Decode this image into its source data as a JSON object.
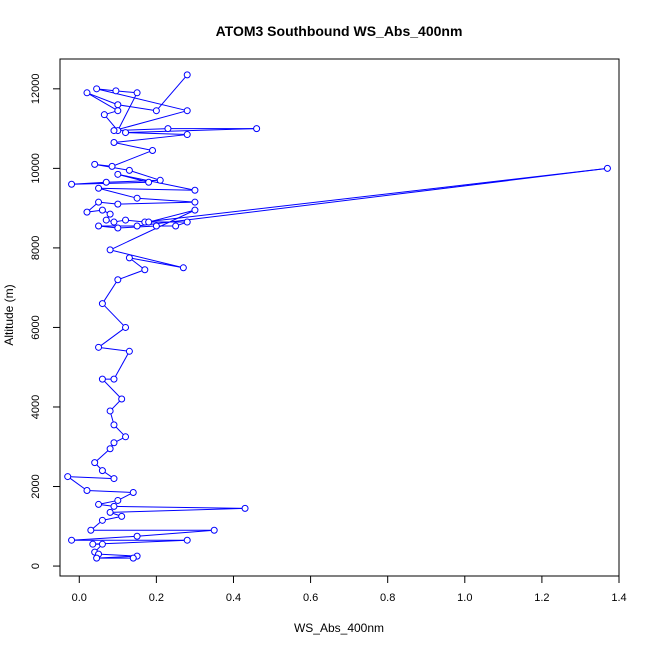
{
  "chart_data": {
    "type": "line",
    "title": "ATOM3 Southbound WS_Abs_400nm",
    "xlabel": "WS_Abs_400nm",
    "ylabel": "Altitude (m)",
    "xlim": [
      -0.05,
      1.4
    ],
    "ylim": [
      -250,
      12750
    ],
    "xticks": [
      "0.0",
      "0.2",
      "0.4",
      "0.6",
      "0.8",
      "1.0",
      "1.2",
      "1.4"
    ],
    "xtick_values": [
      0,
      0.2,
      0.4,
      0.6,
      0.8,
      1.0,
      1.2,
      1.4
    ],
    "yticks": [
      "0",
      "2000",
      "4000",
      "6000",
      "8000",
      "10000",
      "12000"
    ],
    "ytick_values": [
      0,
      2000,
      4000,
      6000,
      8000,
      10000,
      12000
    ],
    "grid": false,
    "series_color": "#0000ff",
    "series": [
      {
        "markers": "open-circle",
        "points": [
          [
            0.28,
            12350
          ],
          [
            0.2,
            11450
          ],
          [
            0.1,
            11600
          ],
          [
            0.02,
            11900
          ],
          [
            0.1,
            11450
          ],
          [
            0.065,
            11350
          ],
          [
            0.1,
            10950
          ],
          [
            0.15,
            11900
          ],
          [
            0.095,
            11950
          ],
          [
            0.045,
            12000
          ],
          [
            0.28,
            11450
          ],
          [
            0.09,
            10950
          ],
          [
            0.23,
            11000
          ],
          [
            0.46,
            11000
          ],
          [
            0.12,
            10900
          ],
          [
            0.28,
            10850
          ],
          [
            0.09,
            10650
          ],
          [
            0.19,
            10450
          ],
          [
            0.085,
            10050
          ],
          [
            0.04,
            10100
          ],
          [
            0.13,
            9950
          ],
          [
            0.21,
            9700
          ],
          [
            0.07,
            9650
          ],
          [
            -0.02,
            9600
          ],
          [
            0.18,
            9650
          ],
          [
            0.1,
            9850
          ],
          [
            0.3,
            9450
          ],
          [
            0.05,
            9500
          ],
          [
            0.15,
            9250
          ],
          [
            0.3,
            9150
          ],
          [
            0.1,
            9100
          ],
          [
            0.05,
            9150
          ],
          [
            0.02,
            8900
          ],
          [
            0.06,
            8950
          ],
          [
            0.08,
            8850
          ],
          [
            0.07,
            8700
          ],
          [
            0.09,
            8650
          ],
          [
            0.12,
            8700
          ],
          [
            0.17,
            8650
          ],
          [
            1.37,
            10000
          ],
          [
            0.15,
            8550
          ],
          [
            0.05,
            8550
          ],
          [
            0.1,
            8500
          ],
          [
            0.2,
            8550
          ],
          [
            0.25,
            8550
          ],
          [
            0.28,
            8650
          ],
          [
            0.18,
            8650
          ],
          [
            0.3,
            8950
          ],
          [
            0.08,
            7950
          ],
          [
            0.27,
            7500
          ],
          [
            0.13,
            7750
          ],
          [
            0.17,
            7450
          ],
          [
            0.1,
            7200
          ],
          [
            0.06,
            6600
          ],
          [
            0.12,
            6000
          ],
          [
            0.05,
            5500
          ],
          [
            0.13,
            5400
          ],
          [
            0.09,
            4700
          ],
          [
            0.06,
            4700
          ],
          [
            0.11,
            4200
          ],
          [
            0.08,
            3900
          ],
          [
            0.09,
            3550
          ],
          [
            0.12,
            3250
          ],
          [
            0.09,
            3100
          ],
          [
            0.08,
            2950
          ],
          [
            0.04,
            2600
          ],
          [
            0.06,
            2400
          ],
          [
            0.09,
            2200
          ],
          [
            -0.03,
            2250
          ],
          [
            0.02,
            1900
          ],
          [
            0.14,
            1850
          ],
          [
            0.1,
            1650
          ],
          [
            0.05,
            1550
          ],
          [
            0.09,
            1500
          ],
          [
            0.43,
            1450
          ],
          [
            0.08,
            1350
          ],
          [
            0.11,
            1250
          ],
          [
            0.06,
            1150
          ],
          [
            0.03,
            900
          ],
          [
            0.35,
            900
          ],
          [
            0.15,
            750
          ],
          [
            -0.02,
            650
          ],
          [
            0.28,
            650
          ],
          [
            0.035,
            550
          ],
          [
            0.06,
            550
          ],
          [
            0.04,
            350
          ],
          [
            0.05,
            300
          ],
          [
            0.15,
            250
          ],
          [
            0.045,
            200
          ],
          [
            0.14,
            200
          ]
        ]
      }
    ]
  }
}
